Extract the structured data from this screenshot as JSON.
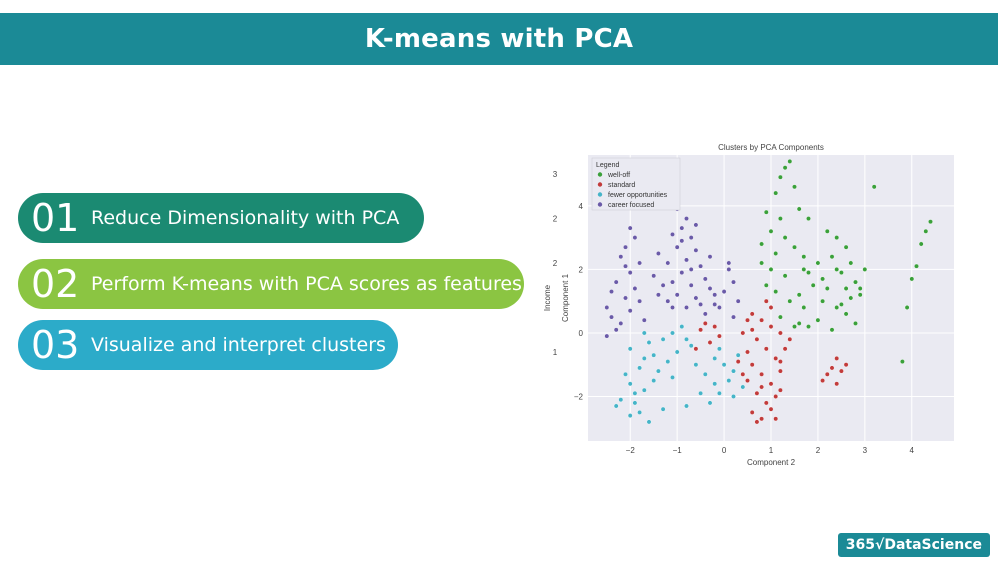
{
  "header": {
    "title": "K-means with PCA"
  },
  "steps": [
    {
      "num": "01",
      "label": "Reduce Dimensionality with PCA"
    },
    {
      "num": "02",
      "label": "Perform K-means with PCA scores as features"
    },
    {
      "num": "03",
      "label": "Visualize and interpret clusters"
    }
  ],
  "brand": {
    "text": "365√DataScience"
  },
  "colors": {
    "header": "#1b8a96",
    "step1": "#1b8a72",
    "step2": "#8bc542",
    "step3": "#2cabc9"
  },
  "chart_data": {
    "type": "scatter",
    "title": "Clusters by PCA Components",
    "xlabel": "Component 2",
    "ylabel": "Component 1",
    "ghost_ylabel": "Income",
    "ghost_yticks": [
      "3",
      "2",
      "2",
      "1"
    ],
    "xlim": [
      -2.9,
      4.9
    ],
    "ylim": [
      -3.4,
      5.6
    ],
    "xticks": [
      -2,
      -1,
      0,
      1,
      2,
      3,
      4
    ],
    "yticks": [
      -2,
      0,
      2,
      4
    ],
    "grid": true,
    "legend_title": "Legend",
    "legend_position": "top-left",
    "series": [
      {
        "name": "well-off",
        "color": "#3aa03a",
        "points": [
          [
            1.4,
            5.4
          ],
          [
            1.3,
            5.2
          ],
          [
            1.2,
            4.9
          ],
          [
            1.5,
            4.6
          ],
          [
            1.1,
            4.4
          ],
          [
            0.9,
            3.8
          ],
          [
            1.2,
            3.6
          ],
          [
            1.6,
            3.9
          ],
          [
            1.8,
            3.6
          ],
          [
            1.0,
            3.2
          ],
          [
            1.3,
            3.0
          ],
          [
            0.8,
            2.8
          ],
          [
            1.1,
            2.5
          ],
          [
            1.5,
            2.7
          ],
          [
            1.7,
            2.4
          ],
          [
            1.0,
            2.0
          ],
          [
            1.3,
            1.8
          ],
          [
            0.9,
            1.5
          ],
          [
            1.6,
            1.2
          ],
          [
            1.4,
            1.0
          ],
          [
            1.9,
            1.5
          ],
          [
            1.7,
            0.8
          ],
          [
            1.2,
            0.5
          ],
          [
            1.5,
            0.2
          ],
          [
            2.2,
            3.2
          ],
          [
            2.4,
            3.0
          ],
          [
            2.6,
            2.7
          ],
          [
            2.3,
            2.4
          ],
          [
            2.7,
            2.2
          ],
          [
            2.5,
            1.9
          ],
          [
            2.8,
            1.6
          ],
          [
            2.2,
            1.4
          ],
          [
            2.9,
            1.2
          ],
          [
            2.4,
            0.8
          ],
          [
            2.6,
            0.6
          ],
          [
            2.0,
            0.4
          ],
          [
            2.3,
            0.1
          ],
          [
            3.0,
            2.0
          ],
          [
            2.9,
            1.4
          ],
          [
            2.7,
            1.1
          ],
          [
            2.5,
            0.9
          ],
          [
            3.2,
            4.6
          ],
          [
            4.4,
            3.5
          ],
          [
            4.3,
            3.2
          ],
          [
            4.2,
            2.8
          ],
          [
            4.1,
            2.1
          ],
          [
            4.0,
            1.7
          ],
          [
            3.9,
            0.8
          ],
          [
            3.8,
            -0.9
          ],
          [
            2.0,
            2.2
          ],
          [
            1.8,
            1.9
          ],
          [
            2.1,
            1.7
          ],
          [
            1.7,
            2.0
          ],
          [
            0.8,
            2.2
          ],
          [
            1.1,
            1.3
          ],
          [
            0.9,
            1.0
          ],
          [
            1.8,
            0.2
          ],
          [
            2.4,
            2.0
          ],
          [
            2.1,
            1.0
          ],
          [
            2.6,
            1.4
          ],
          [
            2.8,
            0.3
          ],
          [
            1.6,
            0.3
          ]
        ]
      },
      {
        "name": "standard",
        "color": "#c23b3b",
        "points": [
          [
            0.6,
            0.6
          ],
          [
            0.8,
            0.4
          ],
          [
            1.0,
            0.2
          ],
          [
            0.7,
            -0.2
          ],
          [
            0.9,
            -0.5
          ],
          [
            1.1,
            -0.8
          ],
          [
            0.6,
            -1.0
          ],
          [
            0.8,
            -1.3
          ],
          [
            1.0,
            -1.6
          ],
          [
            0.7,
            -1.9
          ],
          [
            0.9,
            -2.2
          ],
          [
            0.6,
            -2.5
          ],
          [
            0.8,
            -2.7
          ],
          [
            1.1,
            -2.0
          ],
          [
            1.2,
            -1.2
          ],
          [
            1.3,
            -0.5
          ],
          [
            0.5,
            -0.6
          ],
          [
            0.4,
            0.0
          ],
          [
            1.0,
            0.8
          ],
          [
            0.9,
            1.0
          ],
          [
            -0.5,
            0.1
          ],
          [
            -0.3,
            -0.3
          ],
          [
            -0.6,
            -0.5
          ],
          [
            -0.2,
            0.2
          ],
          [
            -0.4,
            0.3
          ],
          [
            -0.1,
            -0.1
          ],
          [
            2.4,
            -0.8
          ],
          [
            2.3,
            -1.1
          ],
          [
            2.2,
            -1.3
          ],
          [
            2.5,
            -1.2
          ],
          [
            2.1,
            -1.5
          ],
          [
            2.4,
            -1.6
          ],
          [
            2.6,
            -1.0
          ],
          [
            1.2,
            0.0
          ],
          [
            0.5,
            -1.5
          ],
          [
            0.7,
            -2.8
          ],
          [
            1.2,
            -1.8
          ],
          [
            1.0,
            -2.4
          ],
          [
            1.4,
            -0.2
          ],
          [
            0.3,
            -0.9
          ],
          [
            1.2,
            -0.9
          ],
          [
            0.6,
            0.1
          ],
          [
            0.8,
            -1.7
          ],
          [
            0.5,
            0.4
          ],
          [
            1.1,
            -2.7
          ],
          [
            0.4,
            -1.3
          ]
        ]
      },
      {
        "name": "fewer opportunities",
        "color": "#45b4c8",
        "points": [
          [
            -2.1,
            -1.3
          ],
          [
            -2.0,
            -1.6
          ],
          [
            -1.9,
            -1.9
          ],
          [
            -2.2,
            -2.1
          ],
          [
            -2.3,
            -2.3
          ],
          [
            -1.8,
            -1.1
          ],
          [
            -1.7,
            -0.8
          ],
          [
            -2.0,
            -0.5
          ],
          [
            -1.6,
            -0.3
          ],
          [
            -1.7,
            0.0
          ],
          [
            -1.0,
            -0.6
          ],
          [
            -1.2,
            -0.9
          ],
          [
            -1.4,
            -1.2
          ],
          [
            -1.5,
            -1.5
          ],
          [
            -1.7,
            -1.8
          ],
          [
            -1.9,
            -2.2
          ],
          [
            -2.0,
            -2.6
          ],
          [
            -1.6,
            -2.8
          ],
          [
            -1.3,
            -2.4
          ],
          [
            -0.8,
            -0.2
          ],
          [
            -0.6,
            -1.0
          ],
          [
            -0.4,
            -1.3
          ],
          [
            -0.2,
            -1.6
          ],
          [
            -0.5,
            -1.9
          ],
          [
            -0.3,
            -2.2
          ],
          [
            0.0,
            -1.0
          ],
          [
            0.2,
            -1.2
          ],
          [
            0.3,
            -0.7
          ],
          [
            -0.1,
            -0.5
          ],
          [
            -1.1,
            0.0
          ],
          [
            -0.9,
            0.2
          ],
          [
            -0.7,
            -0.4
          ],
          [
            -1.3,
            -0.2
          ],
          [
            -0.1,
            -1.9
          ],
          [
            0.1,
            -1.5
          ],
          [
            -1.5,
            -0.7
          ],
          [
            -0.8,
            -2.3
          ],
          [
            0.4,
            -1.7
          ],
          [
            -1.8,
            -2.5
          ],
          [
            -1.1,
            -1.4
          ],
          [
            -0.2,
            -0.8
          ],
          [
            0.2,
            -2.0
          ]
        ]
      },
      {
        "name": "career focused",
        "color": "#6a5aa8",
        "points": [
          [
            -2.0,
            3.3
          ],
          [
            -1.9,
            3.0
          ],
          [
            -2.1,
            2.7
          ],
          [
            -2.2,
            2.4
          ],
          [
            -1.8,
            2.2
          ],
          [
            -2.0,
            1.9
          ],
          [
            -2.3,
            1.6
          ],
          [
            -2.4,
            1.3
          ],
          [
            -2.1,
            1.1
          ],
          [
            -1.9,
            1.4
          ],
          [
            -2.5,
            0.8
          ],
          [
            -2.4,
            0.5
          ],
          [
            -2.2,
            0.3
          ],
          [
            -2.0,
            0.7
          ],
          [
            -1.8,
            1.0
          ],
          [
            -2.5,
            -0.1
          ],
          [
            -2.3,
            0.1
          ],
          [
            -1.0,
            3.9
          ],
          [
            -0.8,
            3.6
          ],
          [
            -0.9,
            3.3
          ],
          [
            -1.1,
            3.1
          ],
          [
            -0.7,
            3.0
          ],
          [
            -1.0,
            2.7
          ],
          [
            -0.6,
            2.6
          ],
          [
            -0.8,
            2.3
          ],
          [
            -1.2,
            2.2
          ],
          [
            -0.5,
            2.1
          ],
          [
            -0.9,
            1.9
          ],
          [
            -1.1,
            1.6
          ],
          [
            -0.7,
            1.5
          ],
          [
            -0.4,
            1.7
          ],
          [
            -1.0,
            1.2
          ],
          [
            -0.6,
            1.1
          ],
          [
            -0.8,
            0.8
          ],
          [
            -0.3,
            1.4
          ],
          [
            -0.5,
            0.9
          ],
          [
            -0.2,
            1.2
          ],
          [
            -0.4,
            0.6
          ],
          [
            -1.2,
            1.0
          ],
          [
            -1.3,
            1.5
          ],
          [
            0.1,
            2.0
          ],
          [
            0.2,
            1.6
          ],
          [
            0.0,
            1.3
          ],
          [
            0.3,
            1.0
          ],
          [
            -0.1,
            0.8
          ],
          [
            0.2,
            0.5
          ],
          [
            -1.5,
            1.8
          ],
          [
            -1.4,
            2.5
          ],
          [
            -0.6,
            3.4
          ],
          [
            -0.3,
            2.4
          ],
          [
            0.1,
            2.2
          ],
          [
            -1.1,
            0.8
          ],
          [
            -2.1,
            2.1
          ],
          [
            -1.7,
            0.4
          ],
          [
            -0.9,
            2.9
          ],
          [
            -0.2,
            0.9
          ],
          [
            -1.4,
            1.2
          ],
          [
            -0.7,
            2.0
          ]
        ]
      }
    ]
  }
}
